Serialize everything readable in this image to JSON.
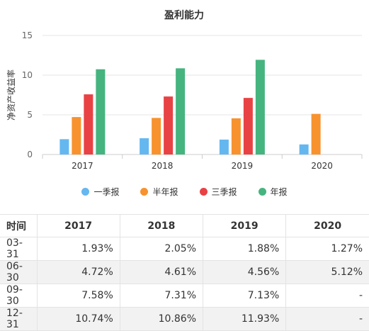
{
  "chart_data": {
    "type": "bar",
    "title": "盈利能力",
    "ylabel": "净资产收益率",
    "xlabel": "",
    "categories": [
      "2017",
      "2018",
      "2019",
      "2020"
    ],
    "ylim": [
      0,
      15
    ],
    "yticks": [
      0,
      5,
      10,
      15
    ],
    "grid": true,
    "legend_position": "bottom",
    "series": [
      {
        "name": "一季报",
        "color": "#65b7f0",
        "values": [
          1.93,
          2.05,
          1.88,
          1.27
        ]
      },
      {
        "name": "半年报",
        "color": "#f7922f",
        "values": [
          4.72,
          4.61,
          4.56,
          5.12
        ]
      },
      {
        "name": "三季报",
        "color": "#e84245",
        "values": [
          7.58,
          7.31,
          7.13,
          null
        ]
      },
      {
        "name": "年报",
        "color": "#45b47f",
        "values": [
          10.74,
          10.86,
          11.93,
          null
        ]
      }
    ]
  },
  "table": {
    "header": [
      "时间",
      "2017",
      "2018",
      "2019",
      "2020"
    ],
    "rows": [
      {
        "label": "03-31",
        "values": [
          "1.93%",
          "2.05%",
          "1.88%",
          "1.27%"
        ]
      },
      {
        "label": "06-30",
        "values": [
          "4.72%",
          "4.61%",
          "4.56%",
          "5.12%"
        ]
      },
      {
        "label": "09-30",
        "values": [
          "7.58%",
          "7.31%",
          "7.13%",
          "-"
        ]
      },
      {
        "label": "12-31",
        "values": [
          "10.74%",
          "10.86%",
          "11.93%",
          "-"
        ]
      }
    ]
  }
}
